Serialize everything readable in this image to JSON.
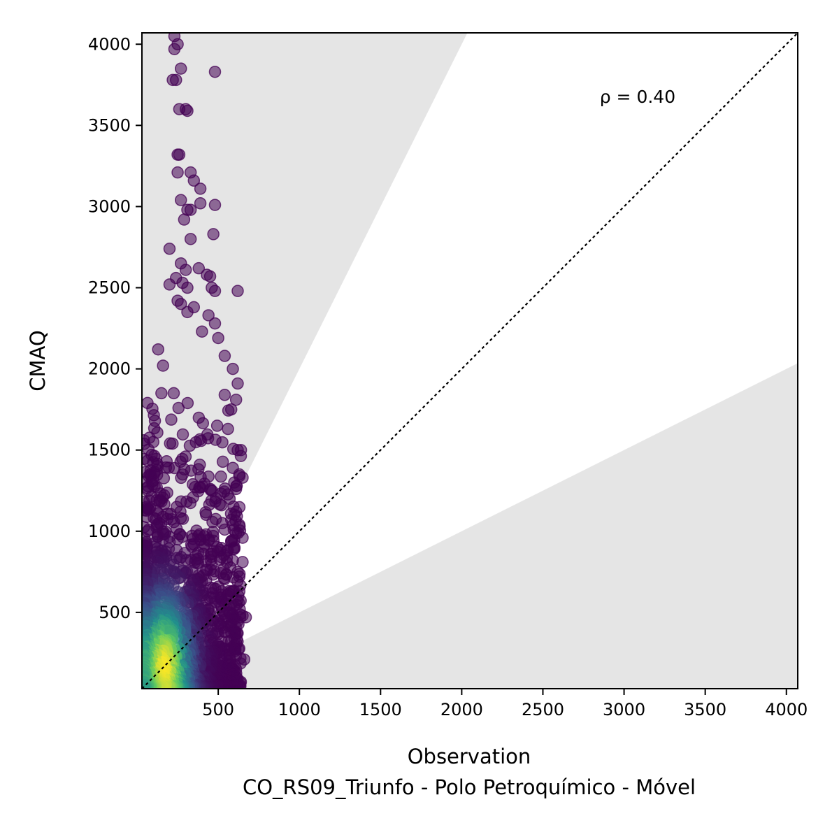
{
  "chart_data": {
    "type": "scatter",
    "title": "",
    "xlabel": "Observation",
    "ylabel": "CMAQ",
    "subtitle": "CO_RS09_Triunfo - Polo Petroquímico - Móvel",
    "xlim": [
      30,
      4070
    ],
    "ylim": [
      30,
      4070
    ],
    "x_ticks": [
      500,
      1000,
      1500,
      2000,
      2500,
      3000,
      3500,
      4000
    ],
    "y_ticks": [
      500,
      1000,
      1500,
      2000,
      2500,
      3000,
      3500,
      4000
    ],
    "grid": false,
    "reference_line": {
      "type": "1:1",
      "style": "dotted",
      "color": "#000000"
    },
    "shaded_regions": [
      {
        "description": "model > 2x observation",
        "slope_lower": 2,
        "color": "#e5e5e5"
      },
      {
        "description": "model < 0.5x observation",
        "slope_upper": 0.5,
        "color": "#e5e5e5"
      }
    ],
    "annotation": {
      "text": "ρ = 0.40",
      "x": 2850,
      "y": 3640
    },
    "colormap": "viridis",
    "color_by": "point density",
    "outlier_points": [
      [
        230,
        4050
      ],
      [
        250,
        4000
      ],
      [
        230,
        3970
      ],
      [
        480,
        3830
      ],
      [
        270,
        3850
      ],
      [
        220,
        3780
      ],
      [
        240,
        3780
      ],
      [
        260,
        3600
      ],
      [
        300,
        3600
      ],
      [
        310,
        3590
      ],
      [
        250,
        3320
      ],
      [
        260,
        3320
      ],
      [
        330,
        3210
      ],
      [
        350,
        3160
      ],
      [
        390,
        3110
      ],
      [
        250,
        3210
      ],
      [
        270,
        3040
      ],
      [
        310,
        2980
      ],
      [
        330,
        2980
      ],
      [
        390,
        3020
      ],
      [
        480,
        3010
      ],
      [
        290,
        2920
      ],
      [
        470,
        2830
      ],
      [
        330,
        2800
      ],
      [
        200,
        2740
      ],
      [
        270,
        2650
      ],
      [
        300,
        2610
      ],
      [
        380,
        2620
      ],
      [
        430,
        2580
      ],
      [
        450,
        2570
      ],
      [
        200,
        2520
      ],
      [
        240,
        2560
      ],
      [
        280,
        2530
      ],
      [
        310,
        2500
      ],
      [
        460,
        2500
      ],
      [
        480,
        2480
      ],
      [
        620,
        2480
      ],
      [
        250,
        2420
      ],
      [
        270,
        2400
      ],
      [
        350,
        2380
      ],
      [
        310,
        2350
      ],
      [
        440,
        2330
      ],
      [
        130,
        2120
      ],
      [
        480,
        2280
      ],
      [
        500,
        2190
      ],
      [
        400,
        2230
      ],
      [
        540,
        2080
      ],
      [
        160,
        2020
      ],
      [
        590,
        2000
      ],
      [
        620,
        1910
      ],
      [
        540,
        1840
      ],
      [
        610,
        1810
      ],
      [
        150,
        1850
      ],
      [
        110,
        1680
      ],
      [
        580,
        1750
      ],
      [
        620,
        1500
      ],
      [
        640,
        1500
      ],
      [
        560,
        1630
      ],
      [
        100,
        1550
      ],
      [
        90,
        1470
      ],
      [
        590,
        1390
      ],
      [
        630,
        1350
      ],
      [
        650,
        1330
      ],
      [
        610,
        1260
      ],
      [
        100,
        1310
      ],
      [
        570,
        1200
      ],
      [
        610,
        1120
      ],
      [
        520,
        1160
      ],
      [
        580,
        1070
      ],
      [
        630,
        1040
      ],
      [
        650,
        960
      ],
      [
        540,
        1010
      ],
      [
        580,
        940
      ],
      [
        600,
        900
      ],
      [
        590,
        820
      ],
      [
        650,
        810
      ],
      [
        620,
        750
      ],
      [
        630,
        720
      ],
      [
        630,
        630
      ],
      [
        650,
        480
      ],
      [
        670,
        470
      ],
      [
        600,
        460
      ],
      [
        660,
        210
      ],
      [
        600,
        300
      ],
      [
        540,
        380
      ],
      [
        500,
        450
      ],
      [
        560,
        200
      ],
      [
        520,
        150
      ],
      [
        600,
        140
      ],
      [
        480,
        120
      ]
    ],
    "dense_cluster_summary": "Bulk of points lie at observation 30-650 and CMAQ 30-2000; highest density (yellow) near observation 100-200, CMAQ 80-250."
  }
}
